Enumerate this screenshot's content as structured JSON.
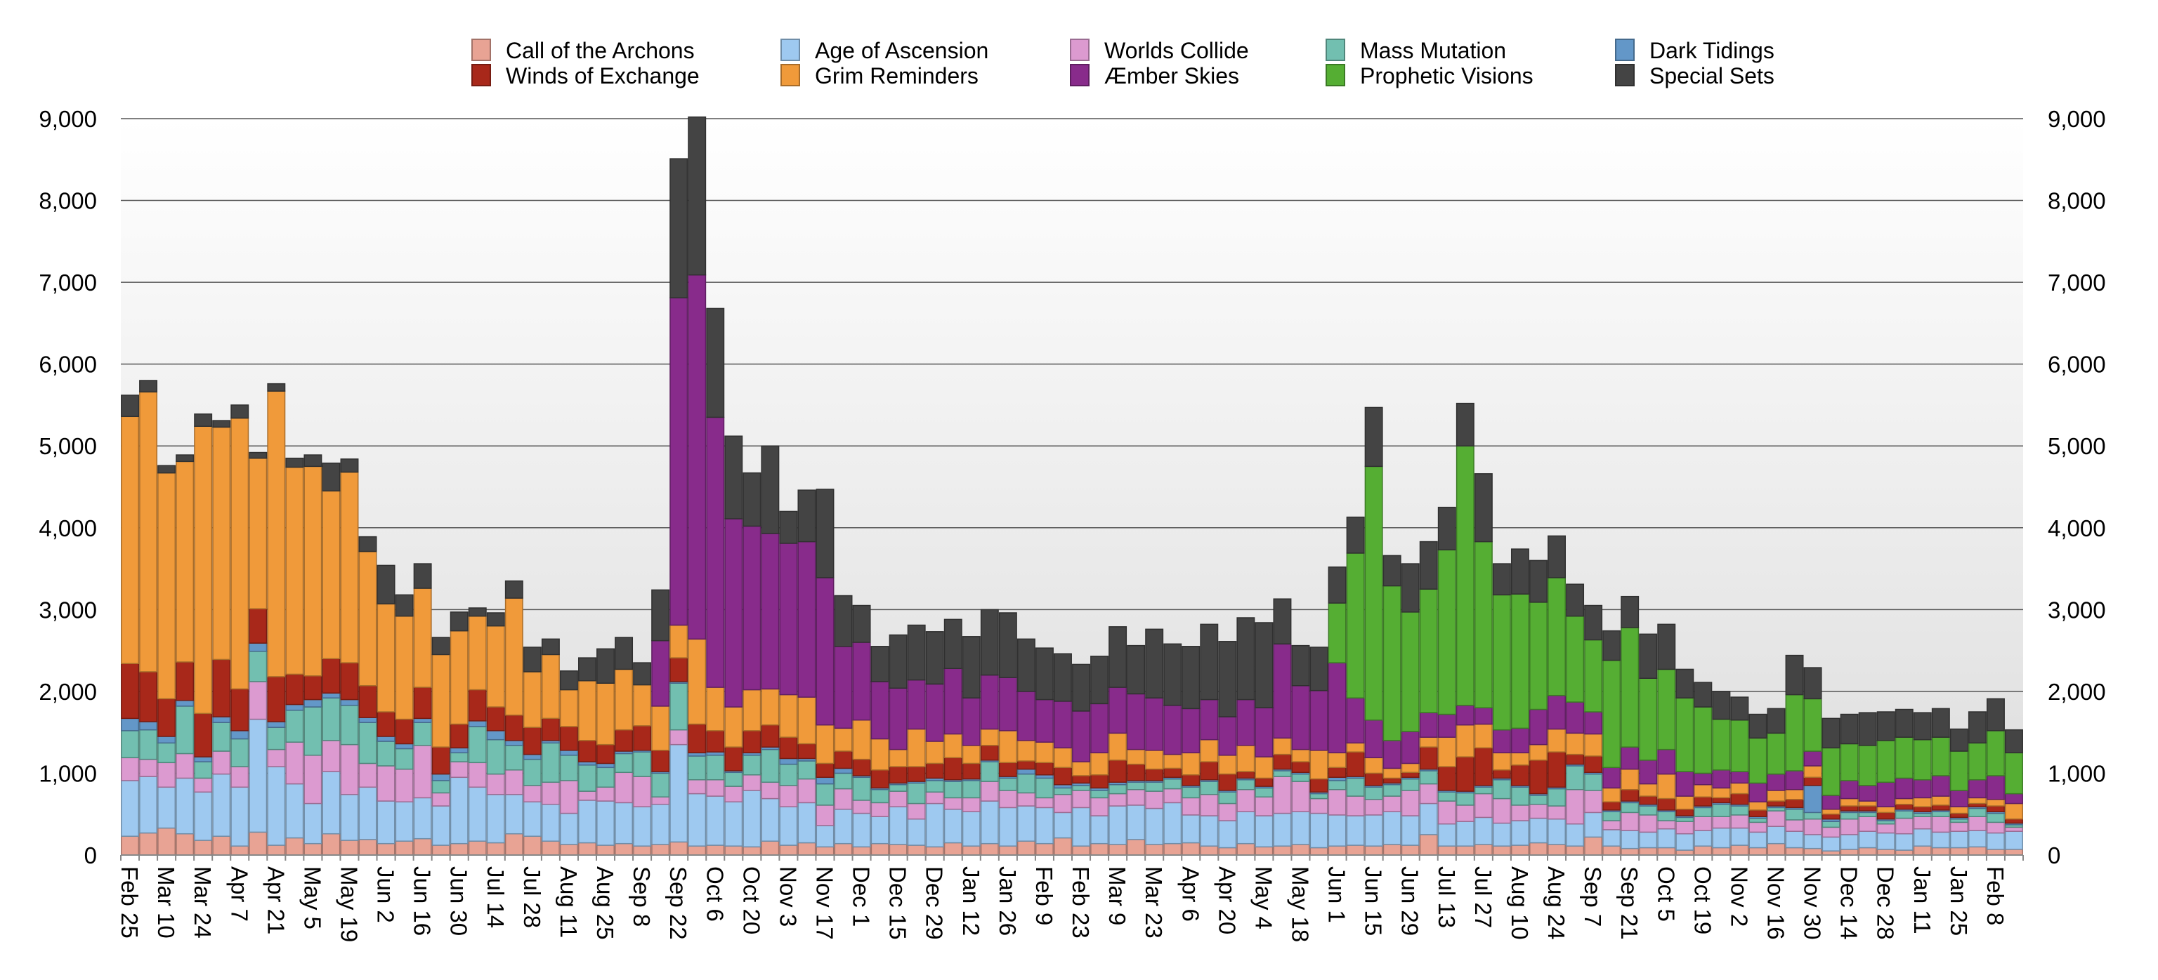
{
  "chart_data": {
    "type": "bar",
    "stacked": true,
    "title": "",
    "xlabel": "",
    "ylabel": "",
    "ylim": [
      0,
      9000
    ],
    "yticks": [
      "0",
      "1,000",
      "2,000",
      "3,000",
      "4,000",
      "5,000",
      "6,000",
      "7,000",
      "8,000",
      "9,000"
    ],
    "ytick_values": [
      0,
      1000,
      2000,
      3000,
      4000,
      5000,
      6000,
      7000,
      8000,
      9000
    ],
    "y_axis_sides": "left-and-right",
    "grid": true,
    "legend_position": "top",
    "bar_interval": "weekly",
    "label_every_n_bars": 2,
    "xtick_labels": [
      "Feb 25",
      "Mar 10",
      "Mar 24",
      "Apr 7",
      "Apr 21",
      "May 5",
      "May 19",
      "Jun 2",
      "Jun 16",
      "Jun 30",
      "Jul 14",
      "Jul 28",
      "Aug 11",
      "Aug 25",
      "Sep 8",
      "Sep 22",
      "Oct 6",
      "Oct 20",
      "Nov 3",
      "Nov 17",
      "Dec 1",
      "Dec 15",
      "Dec 29",
      "Jan 12",
      "Jan 26",
      "Feb 9",
      "Feb 23",
      "Mar 9",
      "Mar 23",
      "Apr 6",
      "Apr 20",
      "May 4",
      "May 18",
      "Jun 1",
      "Jun 15",
      "Jun 29",
      "Jul 13",
      "Jul 27",
      "Aug 10",
      "Aug 24",
      "Sep 7",
      "Sep 21",
      "Oct 5",
      "Oct 19",
      "Nov 2",
      "Nov 16",
      "Nov 30",
      "Dec 14",
      "Dec 28",
      "Jan 11",
      "Jan 25",
      "Feb 8"
    ],
    "legend_order": [
      0,
      5,
      1,
      6,
      2,
      7,
      3,
      8,
      4,
      9
    ],
    "series": [
      {
        "name": "Call of the Archons",
        "color": "#e8a394",
        "values": [
          230,
          270,
          330,
          260,
          180,
          230,
          110,
          280,
          120,
          210,
          140,
          260,
          180,
          190,
          140,
          170,
          200,
          120,
          140,
          170,
          150,
          260,
          230,
          170,
          130,
          150,
          120,
          140,
          110,
          130,
          160,
          110,
          120,
          110,
          100,
          170,
          120,
          150,
          100,
          140,
          100,
          140,
          130,
          120,
          100,
          150,
          110,
          140,
          110,
          170,
          140,
          210,
          110,
          140,
          130,
          190,
          130,
          140,
          150,
          110,
          90,
          140,
          100,
          110,
          130,
          90,
          110,
          120,
          110,
          130,
          120,
          250,
          110,
          110,
          130,
          110,
          120,
          150,
          130,
          110,
          220,
          110,
          80,
          90,
          90,
          60,
          110,
          90,
          120,
          90,
          140,
          90,
          80,
          50,
          70,
          90,
          70,
          60,
          110,
          90,
          90,
          100,
          70,
          70
        ]
      },
      {
        "name": "Age of Ascension",
        "color": "#9ec9f0",
        "values": [
          680,
          690,
          500,
          680,
          590,
          760,
          720,
          1380,
          960,
          660,
          490,
          760,
          560,
          640,
          520,
          480,
          500,
          480,
          810,
          660,
          590,
          480,
          420,
          450,
          380,
          520,
          540,
          500,
          480,
          490,
          1190,
          640,
          600,
          540,
          690,
          520,
          470,
          490,
          260,
          420,
          410,
          330,
          460,
          320,
          530,
          410,
          420,
          520,
          470,
          430,
          440,
          310,
          470,
          340,
          470,
          420,
          440,
          500,
          340,
          370,
          330,
          390,
          380,
          400,
          400,
          420,
          380,
          360,
          380,
          400,
          360,
          380,
          270,
          300,
          330,
          280,
          300,
          300,
          310,
          270,
          300,
          200,
          220,
          190,
          230,
          200,
          190,
          240,
          210,
          190,
          210,
          200,
          170,
          170,
          180,
          200,
          200,
          200,
          210,
          190,
          200,
          200,
          200,
          220
        ]
      },
      {
        "name": "Worlds Collide",
        "color": "#dc9ad0",
        "values": [
          280,
          210,
          300,
          300,
          170,
          280,
          250,
          460,
          210,
          510,
          590,
          380,
          610,
          290,
          430,
          400,
          640,
          160,
          190,
          300,
          250,
          300,
          200,
          270,
          400,
          110,
          170,
          370,
          370,
          90,
          180,
          170,
          200,
          190,
          190,
          200,
          260,
          290,
          250,
          250,
          160,
          170,
          190,
          190,
          140,
          140,
          170,
          240,
          210,
          160,
          120,
          220,
          210,
          220,
          150,
          190,
          210,
          170,
          210,
          260,
          210,
          270,
          230,
          450,
          370,
          180,
          310,
          240,
          190,
          190,
          310,
          240,
          280,
          200,
          290,
          300,
          190,
          170,
          160,
          420,
          270,
          110,
          220,
          210,
          100,
          150,
          170,
          140,
          160,
          120,
          190,
          140,
          190,
          120,
          190,
          180,
          110,
          190,
          150,
          190,
          110,
          170,
          130,
          50
        ]
      },
      {
        "name": "Mass Mutation",
        "color": "#72bfb0",
        "values": [
          330,
          360,
          240,
          580,
          200,
          350,
          340,
          370,
          270,
          390,
          590,
          520,
          480,
          500,
          300,
          250,
          280,
          150,
          110,
          440,
          420,
          300,
          320,
          480,
          310,
          320,
          240,
          230,
          300,
          290,
          570,
          290,
          300,
          170,
          240,
          400,
          260,
          220,
          260,
          190,
          280,
          160,
          80,
          250,
          140,
          200,
          210,
          240,
          150,
          230,
          240,
          80,
          60,
          90,
          110,
          90,
          110,
          120,
          130,
          160,
          140,
          120,
          110,
          70,
          90,
          60,
          110,
          220,
          150,
          140,
          140,
          160,
          110,
          150,
          80,
          230,
          220,
          110,
          210,
          290,
          200,
          110,
          120,
          110,
          110,
          50,
          110,
          150,
          110,
          50,
          40,
          130,
          80,
          70,
          80,
          50,
          40,
          90,
          40,
          60,
          40,
          100,
          110,
          30
        ]
      },
      {
        "name": "Dark Tidings",
        "color": "#6397c8",
        "values": [
          150,
          100,
          80,
          70,
          60,
          70,
          100,
          100,
          70,
          70,
          90,
          60,
          70,
          60,
          60,
          60,
          50,
          80,
          60,
          70,
          110,
          60,
          60,
          30,
          60,
          40,
          50,
          30,
          20,
          20,
          20,
          40,
          40,
          20,
          30,
          30,
          70,
          30,
          80,
          60,
          20,
          20,
          20,
          20,
          30,
          20,
          20,
          20,
          20,
          60,
          40,
          40,
          30,
          30,
          30,
          20,
          20,
          20,
          20,
          20,
          20,
          20,
          20,
          20,
          20,
          20,
          40,
          20,
          20,
          20,
          20,
          20,
          20,
          20,
          20,
          20,
          20,
          20,
          20,
          20,
          20,
          20,
          20,
          20,
          20,
          20,
          20,
          20,
          20,
          20,
          20,
          20,
          330,
          30,
          20,
          20,
          20,
          20,
          20,
          20,
          20,
          20,
          20,
          20
        ]
      },
      {
        "name": "Winds of Exchange",
        "color": "#a8281a",
        "values": [
          670,
          610,
          460,
          470,
          530,
          700,
          510,
          420,
          550,
          370,
          290,
          420,
          450,
          390,
          300,
          300,
          380,
          330,
          290,
          380,
          290,
          310,
          330,
          270,
          290,
          260,
          230,
          260,
          300,
          260,
          290,
          350,
          260,
          290,
          270,
          270,
          260,
          180,
          170,
          210,
          200,
          220,
          200,
          180,
          180,
          270,
          190,
          180,
          170,
          100,
          150,
          210,
          90,
          160,
          270,
          200,
          140,
          110,
          130,
          220,
          200,
          80,
          100,
          180,
          130,
          160,
          120,
          300,
          150,
          60,
          60,
          270,
          290,
          420,
          460,
          100,
          250,
          410,
          430,
          120,
          200,
          100,
          140,
          100,
          140,
          80,
          110,
          60,
          130,
          80,
          60,
          100,
          100,
          60,
          60,
          60,
          80,
          60,
          60,
          60,
          50,
          40,
          70,
          50
        ]
      },
      {
        "name": "Grim Reminders",
        "color": "#f09a3a",
        "values": [
          3020,
          3420,
          2760,
          2450,
          3510,
          2840,
          3310,
          1840,
          3490,
          2530,
          2560,
          2050,
          2330,
          1640,
          1320,
          1260,
          1210,
          1130,
          1140,
          900,
          990,
          1430,
          680,
          780,
          450,
          730,
          750,
          740,
          500,
          540,
          400,
          1040,
          530,
          490,
          500,
          440,
          520,
          570,
          470,
          280,
          480,
          380,
          210,
          460,
          270,
          290,
          220,
          200,
          390,
          250,
          250,
          240,
          170,
          270,
          330,
          180,
          230,
          170,
          270,
          270,
          230,
          320,
          260,
          200,
          150,
          350,
          180,
          110,
          190,
          120,
          110,
          120,
          360,
          390,
          290,
          210,
          150,
          190,
          280,
          260,
          270,
          170,
          250,
          150,
          300,
          160,
          150,
          120,
          130,
          100,
          130,
          120,
          140,
          60,
          90,
          60,
          70,
          70,
          110,
          110,
          80,
          70,
          80,
          190
        ]
      },
      {
        "name": "Æmber Skies",
        "color": "#882b8b",
        "values": [
          0,
          0,
          0,
          0,
          0,
          0,
          0,
          0,
          0,
          0,
          0,
          0,
          0,
          0,
          0,
          0,
          0,
          0,
          0,
          0,
          0,
          0,
          0,
          0,
          0,
          0,
          0,
          0,
          0,
          800,
          4000,
          4450,
          3300,
          2300,
          2000,
          1900,
          1850,
          1900,
          1800,
          1000,
          950,
          700,
          750,
          600,
          700,
          800,
          580,
          660,
          650,
          600,
          520,
          570,
          620,
          600,
          560,
          680,
          640,
          600,
          540,
          490,
          470,
          560,
          600,
          1150,
          780,
          730,
          1100,
          550,
          460,
          340,
          390,
          300,
          280,
          240,
          200,
          280,
          300,
          430,
          410,
          380,
          270,
          250,
          270,
          290,
          300,
          300,
          140,
          220,
          140,
          230,
          200,
          230,
          180,
          170,
          220,
          190,
          300,
          250,
          220,
          250,
          200,
          220,
          290,
          120
        ]
      },
      {
        "name": "Prophetic Visions",
        "color": "#55ae33",
        "values": [
          0,
          0,
          0,
          0,
          0,
          0,
          0,
          0,
          0,
          0,
          0,
          0,
          0,
          0,
          0,
          0,
          0,
          0,
          0,
          0,
          0,
          0,
          0,
          0,
          0,
          0,
          0,
          0,
          0,
          0,
          0,
          0,
          0,
          0,
          0,
          0,
          0,
          0,
          0,
          0,
          0,
          0,
          0,
          0,
          0,
          0,
          0,
          0,
          0,
          0,
          0,
          0,
          0,
          0,
          0,
          0,
          0,
          0,
          0,
          0,
          0,
          0,
          0,
          0,
          0,
          0,
          730,
          1770,
          3100,
          1890,
          1460,
          1510,
          2010,
          3170,
          2030,
          1650,
          1640,
          1310,
          1440,
          1050,
          880,
          1310,
          1460,
          1000,
          980,
          900,
          810,
          620,
          630,
          550,
          500,
          930,
          640,
          580,
          450,
          490,
          510,
          500,
          490,
          470,
          480,
          450,
          550,
          500
        ]
      },
      {
        "name": "Special Sets",
        "color": "#444444",
        "values": [
          260,
          140,
          90,
          80,
          150,
          80,
          160,
          70,
          90,
          110,
          140,
          340,
          160,
          180,
          470,
          260,
          300,
          210,
          230,
          100,
          160,
          210,
          300,
          190,
          230,
          280,
          420,
          390,
          270,
          620,
          1700,
          1930,
          1330,
          1010,
          650,
          1070,
          390,
          630,
          1080,
          620,
          450,
          430,
          650,
          670,
          640,
          600,
          750,
          800,
          790,
          640,
          630,
          580,
          570,
          580,
          740,
          590,
          840,
          750,
          760,
          920,
          920,
          1000,
          1040,
          550,
          490,
          530,
          440,
          440,
          720,
          370,
          590,
          580,
          520,
          520,
          830,
          380,
          550,
          510,
          510,
          390,
          420,
          360,
          380,
          540,
          550,
          350,
          300,
          340,
          280,
          290,
          300,
          480,
          380,
          360,
          360,
          400,
          350,
          340,
          330,
          350,
          270,
          380,
          390,
          280
        ]
      }
    ]
  }
}
